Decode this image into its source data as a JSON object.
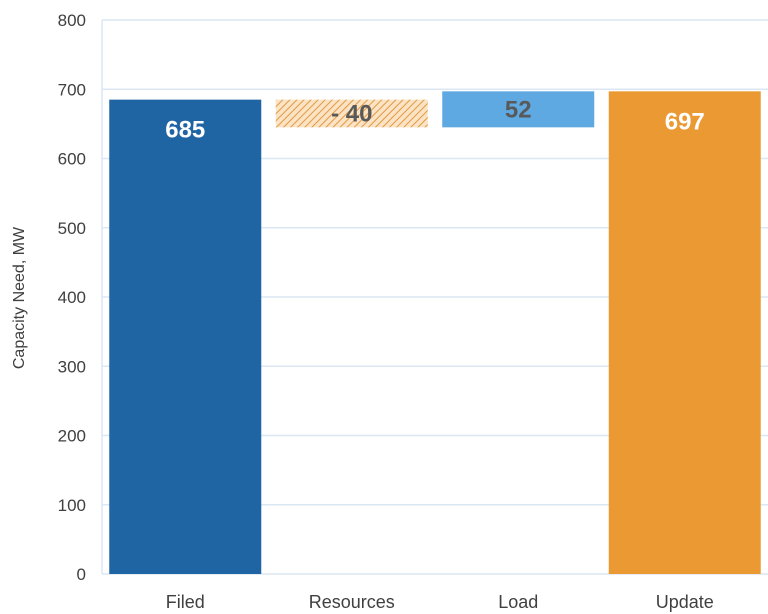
{
  "chart_data": {
    "type": "bar",
    "subtype": "waterfall",
    "categories": [
      "Filed",
      "Resources",
      "Load",
      "Update"
    ],
    "values": [
      685,
      -40,
      52,
      697
    ],
    "data_labels": [
      "685",
      "- 40",
      "52",
      "697"
    ],
    "ylabel": "Capacity Need, MW",
    "ylim": [
      0,
      800
    ],
    "yticks": [
      0,
      100,
      200,
      300,
      400,
      500,
      600,
      700,
      800
    ],
    "grid": true,
    "legend": "none",
    "colors": {
      "Filed": "#1f65a4",
      "Resources": "#f0b46a",
      "Load": "#5ea9e2",
      "Update": "#eb9a33",
      "grid": "#dbe7f3",
      "text": "#404040"
    }
  }
}
